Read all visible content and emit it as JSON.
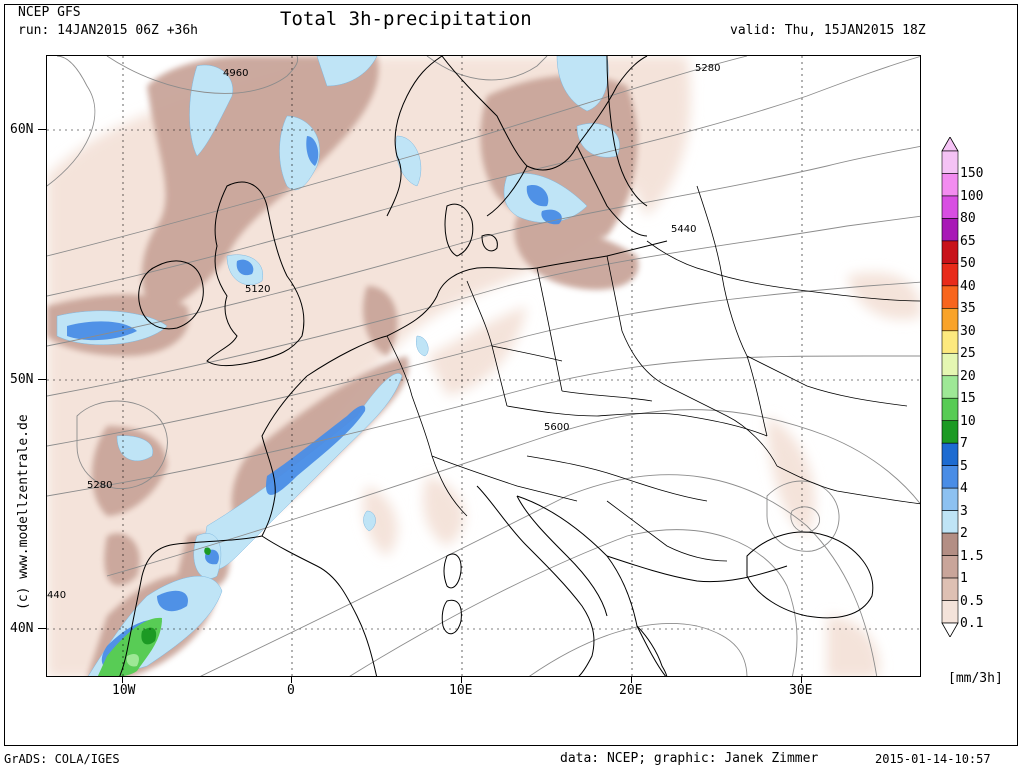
{
  "header": {
    "model": "NCEP GFS",
    "run": "run: 14JAN2015 06Z +36h",
    "title": "Total 3h-precipitation",
    "valid": "valid: Thu, 15JAN2015 18Z"
  },
  "axes": {
    "lat_labels": [
      "60N",
      "50N",
      "40N"
    ],
    "lon_labels": [
      "10W",
      "0",
      "10E",
      "20E",
      "30E"
    ]
  },
  "contour_labels": [
    "4960",
    "5280",
    "5120",
    "5440",
    "5600",
    "5280",
    "440"
  ],
  "colorbar": {
    "unit": "[mm/3h]",
    "levels": [
      "150",
      "100",
      "80",
      "65",
      "50",
      "40",
      "35",
      "30",
      "25",
      "20",
      "15",
      "10",
      "7",
      "5",
      "4",
      "3",
      "2",
      "1.5",
      "1",
      "0.5",
      "0.1"
    ],
    "colors": [
      "#f5c3f5",
      "#f38cf0",
      "#d84ee2",
      "#a819b6",
      "#c8121a",
      "#e82b1a",
      "#f8651d",
      "#f9a32a",
      "#fde97e",
      "#e5f7b2",
      "#9ee896",
      "#58cc55",
      "#1c9a24",
      "#1d6bd1",
      "#4a8de6",
      "#8dc1f1",
      "#bfe4f6",
      "#b38e84",
      "#c9a59a",
      "#dec0b3",
      "#f4e3da"
    ]
  },
  "footer": {
    "software": "GrADS: COLA/IGES",
    "credit": "data: NCEP; graphic: Janek Zimmer",
    "timestamp": "2015-01-14-10:57"
  },
  "watermark": "(c) www.modellzentrale.de"
}
